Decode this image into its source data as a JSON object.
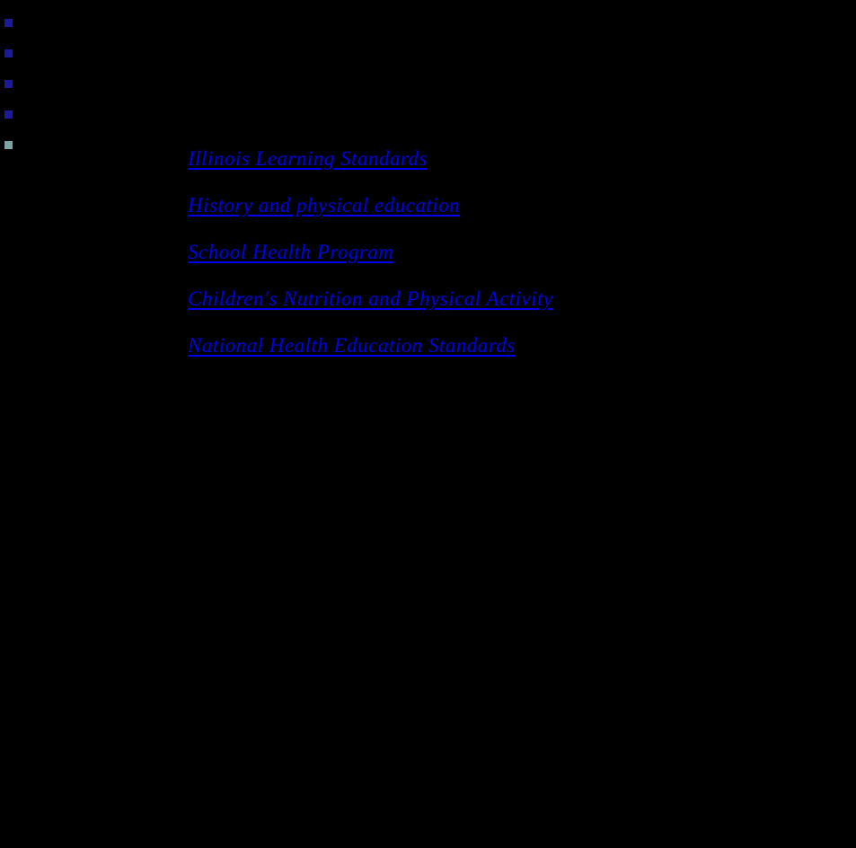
{
  "page": {
    "background_color": "#000000",
    "link_color": "#0000EE"
  },
  "bullets": [
    {
      "name": "square-bullet-icon",
      "color": "#1A1A9B"
    },
    {
      "name": "square-bullet-icon",
      "color": "#1A1A9B"
    },
    {
      "name": "square-bullet-icon",
      "color": "#1A1A9B"
    },
    {
      "name": "square-bullet-icon",
      "color": "#1A1A9B"
    },
    {
      "name": "square-bullet-icon",
      "color": "#7AA5A5"
    }
  ],
  "links": [
    {
      "label": "Illinois Learning Standards"
    },
    {
      "label": "History and physical education"
    },
    {
      "label": "School Health Program"
    },
    {
      "label": "Children's Nutrition and Physical Activity"
    },
    {
      "label": "National Health Education Standards"
    }
  ]
}
